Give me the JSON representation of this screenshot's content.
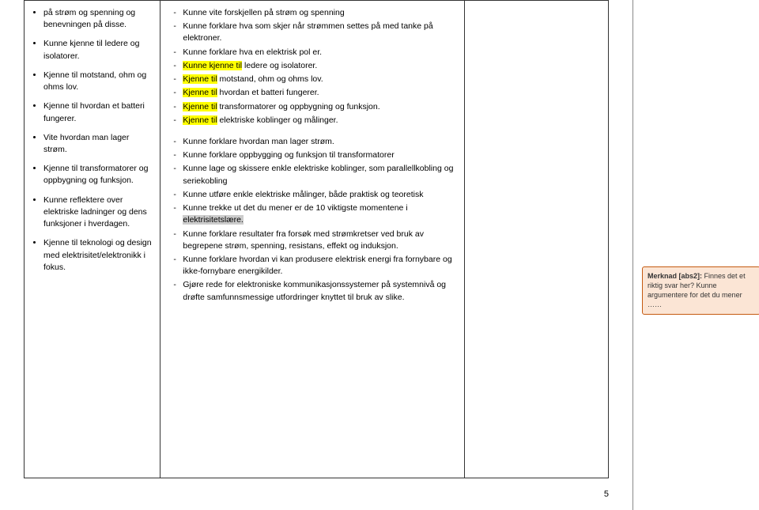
{
  "col1_bullets": [
    "på strøm og spenning og benevningen på disse.",
    "Kunne kjenne til ledere og isolatorer.",
    " Kjenne til motstand, ohm og ohms lov.",
    "Kjenne til hvordan et batteri fungerer.",
    "Vite hvordan man lager strøm.",
    " Kjenne til transformatorer og oppbygning og funksjon.",
    "Kunne reflektere over elektriske ladninger og dens funksjoner i hverdagen.",
    "Kjenne til teknologi og design med elektrisitet/elektronikk i fokus."
  ],
  "col2_block1": [
    {
      "text": "Kunne vite forskjellen på strøm og spenning"
    },
    {
      "text": "Kunne forklare hva som skjer når strømmen settes på med tanke på elektroner."
    },
    {
      "text": " Kunne forklare hva en elektrisk pol er."
    },
    {
      "pre_hl": "Kunne kjenne til",
      "post": " ledere og isolatorer."
    },
    {
      "pre_sp": " ",
      "pre_hl": "Kjenne til",
      "post": " motstand, ohm og ohms lov."
    },
    {
      "pre_sp": " ",
      "pre_hl": "Kjenne til",
      "post": " hvordan et batteri fungerer."
    },
    {
      "pre_hl": "Kjenne til",
      "post": " transformatorer og oppbygning og funksjon."
    },
    {
      "pre_sp": " ",
      "pre_hl": "Kjenne til",
      "post": " elektriske koblinger og målinger."
    }
  ],
  "col2_block2": [
    {
      "text": "Kunne forklare hvordan man lager strøm."
    },
    {
      "text": "Kunne forklare oppbygging og funksjon til transformatorer"
    },
    {
      "text": "Kunne lage og skissere enkle elektriske koblinger, som parallellkobling og seriekobling"
    },
    {
      "text": "Kunne utføre enkle elektriske målinger, både praktisk og teoretisk"
    },
    {
      "pre": "Kunne trekke ut det du mener er de 10 viktigste momentene i ",
      "gray_hl": "elektrisitetslære.",
      "is_gray": true
    },
    {
      "text": "Kunne forklare resultater fra forsøk med strømkretser ved bruk av begrepene strøm, spenning, resistans, effekt og induksjon."
    },
    {
      "text": "Kunne forklare hvordan vi kan produsere elektrisk energi fra fornybare og ikke-fornybare energikilder."
    },
    {
      "text": "Gjøre rede for elektroniske kommunikasjonssystemer på systemnivå og drøfte samfunnsmessige utfordringer knyttet til bruk av slike."
    }
  ],
  "comment": {
    "label": "Merknad [abs2]:",
    "text": " Finnes det et riktig svar her? Kunne argumentere for det du mener ……"
  },
  "page_number": "5",
  "colors": {
    "highlight_yellow": "#ffff00",
    "highlight_gray": "#cccccc",
    "comment_bg": "#fbe5d5",
    "comment_border": "#c55a11",
    "border": "#333333"
  }
}
